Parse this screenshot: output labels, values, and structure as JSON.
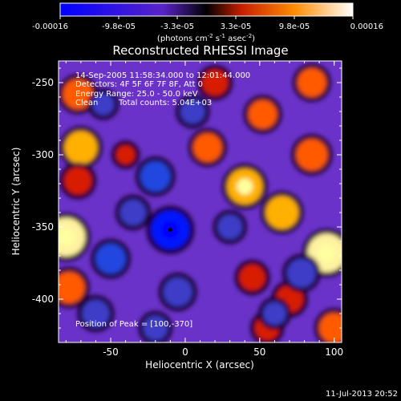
{
  "chart_data": {
    "type": "heatmap",
    "title": "Reconstructed RHESSI Image",
    "xlabel": "Heliocentric X (arcsec)",
    "ylabel": "Heliocentric Y (arcsec)",
    "xlim": [
      -85,
      105
    ],
    "ylim": [
      -430,
      -235
    ],
    "x_ticks": [
      -50,
      0,
      50,
      100
    ],
    "y_ticks": [
      -250,
      -300,
      -350,
      -400
    ],
    "colorbar": {
      "tick_labels": [
        "-0.00016",
        "-9.8e-05",
        "-3.3e-05",
        "3.3e-05",
        "9.8e-05",
        "0.00016"
      ],
      "range": [
        -0.00016,
        0.00016
      ],
      "unit_label_main": "(photons cm",
      "unit_exp_1": "-2",
      "unit_mid_1": " s",
      "unit_exp_2": "-1",
      "unit_mid_2": " asec",
      "unit_exp_3": "-2",
      "unit_end": ")"
    },
    "annotations": [
      "14-Sep-2005 11:58:34.000 to 12:01:44.000",
      "Detectors: 4F 5F 6F 7F 8F, Att 0",
      "Energy Range: 25.0 - 50.0 keV",
      "Clean",
      "Total counts: 5.04E+03"
    ],
    "peak_label": "Position of Peak = [100,-370]",
    "minimum_marker": {
      "x": -10,
      "y": -352
    },
    "field_blobs": [
      {
        "x": -80,
        "y": -357,
        "value": 0.00016
      },
      {
        "x": -70,
        "y": -295,
        "value": 0.00012
      },
      {
        "x": -72,
        "y": -258,
        "value": 0.0001
      },
      {
        "x": -72,
        "y": -318,
        "value": 8e-05
      },
      {
        "x": -78,
        "y": -392,
        "value": 0.00011
      },
      {
        "x": 40,
        "y": -322,
        "value": 0.00014
      },
      {
        "x": 65,
        "y": -340,
        "value": 0.00012
      },
      {
        "x": 52,
        "y": -272,
        "value": 9e-05
      },
      {
        "x": 95,
        "y": -368,
        "value": 0.00016
      },
      {
        "x": 85,
        "y": -300,
        "value": 0.00011
      },
      {
        "x": 85,
        "y": -250,
        "value": 9e-05
      },
      {
        "x": 70,
        "y": -400,
        "value": 8e-05
      },
      {
        "x": 45,
        "y": -385,
        "value": 7e-05
      },
      {
        "x": 15,
        "y": -295,
        "value": 9e-05
      },
      {
        "x": 20,
        "y": -250,
        "value": 7e-05
      },
      {
        "x": 100,
        "y": -420,
        "value": 0.0001
      },
      {
        "x": 55,
        "y": -420,
        "value": 6e-05
      },
      {
        "x": -40,
        "y": -300,
        "value": 2e-05
      },
      {
        "x": -10,
        "y": -352,
        "value": -0.00016
      },
      {
        "x": -20,
        "y": -315,
        "value": -0.0001
      },
      {
        "x": -50,
        "y": -372,
        "value": -0.0001
      },
      {
        "x": -60,
        "y": -410,
        "value": -8e-05
      },
      {
        "x": -5,
        "y": -395,
        "value": -9e-05
      },
      {
        "x": -35,
        "y": -340,
        "value": -7e-05
      },
      {
        "x": 5,
        "y": -270,
        "value": -6e-05
      },
      {
        "x": 30,
        "y": -350,
        "value": -6e-05
      },
      {
        "x": 78,
        "y": -382,
        "value": -9e-05
      },
      {
        "x": 60,
        "y": -410,
        "value": -5e-05
      },
      {
        "x": -55,
        "y": -265,
        "value": -4e-05
      },
      {
        "x": -20,
        "y": -420,
        "value": -6e-05
      }
    ]
  },
  "footer": {
    "date": "11-Jul-2013 20:52"
  }
}
